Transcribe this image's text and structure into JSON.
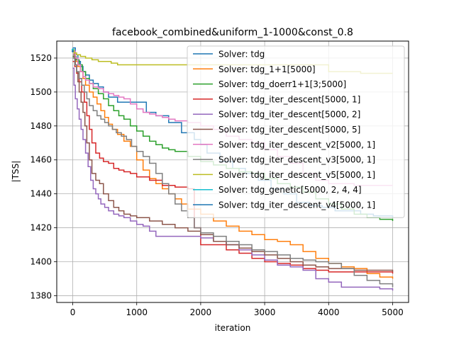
{
  "chart_data": {
    "type": "line",
    "title": "facebook_combined&uniform_1-1000&const_0.8",
    "xlabel": "iteration",
    "ylabel": "|TSS|",
    "xlim": [
      -250,
      5250
    ],
    "ylim": [
      1376,
      1530
    ],
    "xticks": [
      0,
      1000,
      2000,
      3000,
      4000,
      5000
    ],
    "xtick_labels": [
      "0",
      "1000",
      "2000",
      "3000",
      "4000",
      "5000"
    ],
    "yticks": [
      1380,
      1400,
      1420,
      1440,
      1460,
      1480,
      1500,
      1520
    ],
    "ytick_labels": [
      "1380",
      "1400",
      "1420",
      "1440",
      "1460",
      "1480",
      "1500",
      "1520"
    ],
    "grid": true,
    "legend_position": "upper-right",
    "series": [
      {
        "name": "Solver: tdg",
        "color": "#1f77b4",
        "x": [
          0,
          40,
          80,
          120,
          160,
          200,
          260,
          320,
          400,
          480,
          560,
          700,
          800,
          1000,
          1150,
          1300,
          1500,
          1700,
          1900,
          2000,
          2100,
          2300,
          2500,
          2700,
          2900,
          3100,
          3300,
          3500,
          3700,
          3900,
          4100,
          4300,
          4500,
          4700,
          5000
        ],
        "y": [
          1526,
          1522,
          1518,
          1515,
          1512,
          1510,
          1507,
          1505,
          1503,
          1500,
          1497,
          1494,
          1494,
          1494,
          1488,
          1486,
          1482,
          1476,
          1472,
          1469,
          1464,
          1459,
          1455,
          1452,
          1448,
          1443,
          1440,
          1435,
          1433,
          1432,
          1430,
          1430,
          1428,
          1427,
          1426
        ]
      },
      {
        "name": "Solver: tdg_1+1[5000]",
        "color": "#ff7f0e",
        "x": [
          0,
          20,
          50,
          80,
          120,
          160,
          200,
          260,
          320,
          380,
          440,
          500,
          560,
          620,
          700,
          800,
          900,
          1000,
          1100,
          1200,
          1300,
          1400,
          1500,
          1600,
          1700,
          1800,
          2000,
          2200,
          2400,
          2600,
          2800,
          3000,
          3200,
          3400,
          3600,
          3800,
          4000,
          4200,
          4400,
          4600,
          4800,
          5000
        ],
        "y": [
          1524,
          1520,
          1518,
          1515,
          1512,
          1508,
          1504,
          1500,
          1497,
          1493,
          1489,
          1485,
          1481,
          1478,
          1475,
          1471,
          1468,
          1460,
          1454,
          1449,
          1446,
          1443,
          1440,
          1437,
          1434,
          1431,
          1428,
          1424,
          1421,
          1418,
          1416,
          1413,
          1412,
          1410,
          1406,
          1402,
          1399,
          1397,
          1396,
          1393,
          1391,
          1390
        ]
      },
      {
        "name": "Solver: tdg_doerr1+1[3;5000]",
        "color": "#2ca02c",
        "x": [
          0,
          50,
          100,
          150,
          200,
          260,
          320,
          400,
          480,
          560,
          640,
          720,
          800,
          900,
          1000,
          1100,
          1200,
          1300,
          1400,
          1500,
          1600,
          1800,
          2000,
          2200,
          2400,
          2600,
          2800,
          3000,
          3200,
          3400,
          3600,
          3800,
          4000,
          4200,
          4400,
          4600,
          4800,
          5000
        ],
        "y": [
          1521,
          1519,
          1516,
          1512,
          1508,
          1505,
          1502,
          1499,
          1496,
          1492,
          1489,
          1486,
          1484,
          1480,
          1477,
          1474,
          1471,
          1469,
          1467,
          1466,
          1465,
          1462,
          1459,
          1457,
          1455,
          1453,
          1452,
          1449,
          1446,
          1444,
          1441,
          1437,
          1434,
          1431,
          1428,
          1426,
          1425,
          1424
        ]
      },
      {
        "name": "Solver: tdg_iter_descent[5000, 1]",
        "color": "#d62728",
        "x": [
          0,
          30,
          60,
          100,
          140,
          180,
          220,
          260,
          300,
          360,
          420,
          480,
          560,
          640,
          720,
          800,
          900,
          1000,
          1200,
          1400,
          1600,
          1800,
          1900,
          2000,
          2200,
          2400,
          2600,
          2800,
          3000,
          3200,
          3400,
          3600,
          3800,
          4000,
          4200,
          4400,
          4600,
          4800,
          5000
        ],
        "y": [
          1518,
          1515,
          1511,
          1506,
          1500,
          1494,
          1486,
          1478,
          1470,
          1464,
          1461,
          1459,
          1458,
          1455,
          1454,
          1453,
          1452,
          1450,
          1448,
          1445,
          1444,
          1443,
          1420,
          1410,
          1410,
          1407,
          1405,
          1402,
          1400,
          1399,
          1398,
          1396,
          1395,
          1394,
          1394,
          1394,
          1394,
          1394,
          1393
        ]
      },
      {
        "name": "Solver: tdg_iter_descent[5000, 2]",
        "color": "#9467bd",
        "x": [
          0,
          20,
          40,
          70,
          100,
          130,
          160,
          200,
          240,
          280,
          320,
          360,
          400,
          440,
          500,
          560,
          640,
          720,
          800,
          900,
          1000,
          1100,
          1200,
          1300,
          1400,
          1600,
          1800,
          2000,
          2200,
          2400,
          2600,
          2800,
          3000,
          3200,
          3400,
          3600,
          3800,
          4000,
          4200,
          4400,
          4600,
          4800,
          5000
        ],
        "y": [
          1514,
          1504,
          1496,
          1490,
          1484,
          1478,
          1472,
          1464,
          1456,
          1448,
          1443,
          1440,
          1437,
          1434,
          1432,
          1430,
          1428,
          1427,
          1426,
          1424,
          1422,
          1421,
          1418,
          1415,
          1415,
          1415,
          1415,
          1414,
          1412,
          1410,
          1407,
          1404,
          1401,
          1398,
          1397,
          1395,
          1390,
          1388,
          1385,
          1385,
          1385,
          1384,
          1383
        ]
      },
      {
        "name": "Solver: tdg_iter_descent[5000, 5]",
        "color": "#8c564b",
        "x": [
          0,
          20,
          40,
          60,
          80,
          100,
          130,
          160,
          190,
          220,
          260,
          300,
          360,
          420,
          480,
          560,
          640,
          720,
          800,
          900,
          1000,
          1200,
          1400,
          1600,
          1800,
          2000,
          2200,
          2400,
          2600,
          2800,
          3000,
          3200,
          3400,
          3600,
          3800,
          4000,
          4200,
          4400,
          4600,
          4800,
          5000
        ],
        "y": [
          1524,
          1520,
          1516,
          1512,
          1506,
          1500,
          1494,
          1488,
          1480,
          1470,
          1460,
          1452,
          1448,
          1446,
          1440,
          1436,
          1432,
          1430,
          1428,
          1427,
          1426,
          1424,
          1422,
          1420,
          1418,
          1416,
          1412,
          1410,
          1408,
          1406,
          1404,
          1402,
          1400,
          1398,
          1397,
          1396,
          1396,
          1395,
          1395,
          1395,
          1394
        ]
      },
      {
        "name": "Solver: tdg_iter_descent_v2[5000, 1]",
        "color": "#e377c2",
        "x": [
          0,
          40,
          80,
          120,
          160,
          200,
          260,
          320,
          400,
          480,
          560,
          640,
          720,
          800,
          900,
          1000,
          1100,
          1200,
          1300,
          1400,
          1500,
          1600,
          1700,
          1800,
          2000,
          2200,
          2400,
          2600,
          2800,
          3000,
          3200,
          3400,
          3600,
          3800,
          4000,
          4200,
          4400,
          4600,
          4800,
          5000
        ],
        "y": [
          1524,
          1520,
          1516,
          1512,
          1509,
          1507,
          1505,
          1503,
          1502,
          1500,
          1499,
          1498,
          1497,
          1496,
          1493,
          1490,
          1488,
          1487,
          1486,
          1485,
          1484,
          1483,
          1483,
          1482,
          1480,
          1478,
          1474,
          1472,
          1470,
          1466,
          1462,
          1458,
          1452,
          1448,
          1446,
          1446,
          1445,
          1445,
          1445,
          1445
        ]
      },
      {
        "name": "Solver: tdg_iter_descent_v3[5000, 1]",
        "color": "#7f7f7f",
        "x": [
          0,
          30,
          60,
          100,
          140,
          180,
          220,
          260,
          320,
          380,
          440,
          500,
          560,
          620,
          680,
          760,
          840,
          920,
          1000,
          1100,
          1200,
          1300,
          1400,
          1500,
          1600,
          1700,
          1800,
          1900,
          2000,
          2200,
          2400,
          2600,
          2800,
          3000,
          3200,
          3400,
          3600,
          3800,
          4000,
          4200,
          4400,
          4600,
          4800,
          5000
        ],
        "y": [
          1520,
          1516,
          1512,
          1508,
          1504,
          1500,
          1496,
          1492,
          1489,
          1486,
          1484,
          1482,
          1480,
          1478,
          1476,
          1474,
          1472,
          1468,
          1465,
          1462,
          1458,
          1452,
          1446,
          1440,
          1434,
          1430,
          1426,
          1420,
          1417,
          1415,
          1412,
          1410,
          1407,
          1406,
          1404,
          1402,
          1401,
          1400,
          1399,
          1396,
          1392,
          1389,
          1387,
          1385
        ]
      },
      {
        "name": "Solver: tdg_iter_descent_v5[5000, 1]",
        "color": "#bcbd22",
        "x": [
          0,
          20,
          60,
          120,
          200,
          300,
          400,
          500,
          600,
          700,
          800,
          1000,
          2000,
          3000,
          4000,
          4500,
          5000
        ],
        "y": [
          1525,
          1523,
          1522,
          1521,
          1520,
          1519,
          1518,
          1518,
          1517,
          1516,
          1516,
          1516,
          1516,
          1516,
          1512,
          1511,
          1511
        ]
      },
      {
        "name": "Solver: tdg_genetic[5000, 2, 4, 4]",
        "color": "#17becf",
        "x": [
          0
        ],
        "y": [
          1525
        ]
      },
      {
        "name": "Solver: tdg_iter_descent_v4[5000, 1]",
        "color": "#1f77b4",
        "x": [
          0
        ],
        "y": [
          1524
        ]
      }
    ]
  }
}
